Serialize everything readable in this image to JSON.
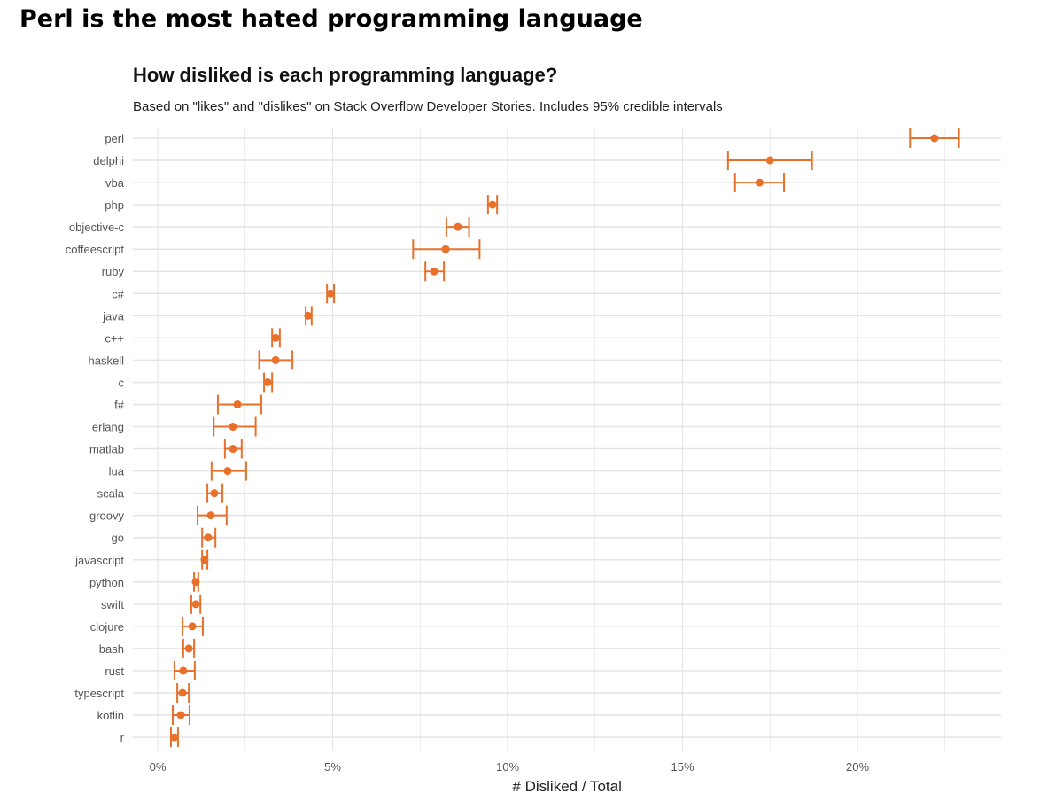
{
  "headline": "Perl is the most hated programming language",
  "chart_data": {
    "type": "scatter",
    "title": "How disliked is each programming language?",
    "subtitle": "Based on \"likes\" and \"dislikes\" on Stack Overflow Developer Stories. Includes 95% credible intervals",
    "xlabel": "# Disliked / Total",
    "ylabel": "",
    "xlim": [
      -0.7,
      24
    ],
    "xticks": [
      0,
      5,
      10,
      15,
      20
    ],
    "xtick_labels": [
      "0%",
      "5%",
      "10%",
      "15%",
      "20%"
    ],
    "grid": true,
    "color": "#e8702a",
    "categories": [
      "perl",
      "delphi",
      "vba",
      "php",
      "objective-c",
      "coffeescript",
      "ruby",
      "c#",
      "java",
      "c++",
      "haskell",
      "c",
      "f#",
      "erlang",
      "matlab",
      "lua",
      "scala",
      "groovy",
      "go",
      "javascript",
      "python",
      "swift",
      "clojure",
      "bash",
      "rust",
      "typescript",
      "kotlin",
      "r"
    ],
    "values": [
      22.2,
      17.5,
      17.2,
      9.57,
      8.58,
      8.23,
      7.9,
      4.94,
      4.3,
      3.37,
      3.37,
      3.14,
      2.28,
      2.15,
      2.15,
      2.0,
      1.62,
      1.52,
      1.44,
      1.34,
      1.09,
      1.09,
      0.99,
      0.89,
      0.73,
      0.71,
      0.66,
      0.48
    ],
    "ci_low": [
      21.5,
      16.3,
      16.5,
      9.44,
      8.25,
      7.3,
      7.65,
      4.84,
      4.23,
      3.27,
      2.9,
      3.04,
      1.72,
      1.6,
      1.92,
      1.54,
      1.42,
      1.14,
      1.27,
      1.27,
      1.04,
      0.96,
      0.71,
      0.73,
      0.48,
      0.56,
      0.43,
      0.38
    ],
    "ci_high": [
      22.9,
      18.7,
      17.9,
      9.7,
      8.9,
      9.2,
      8.18,
      5.04,
      4.4,
      3.49,
      3.85,
      3.27,
      2.96,
      2.8,
      2.4,
      2.53,
      1.85,
      1.97,
      1.65,
      1.42,
      1.16,
      1.22,
      1.29,
      1.04,
      1.06,
      0.89,
      0.91,
      0.58
    ]
  }
}
